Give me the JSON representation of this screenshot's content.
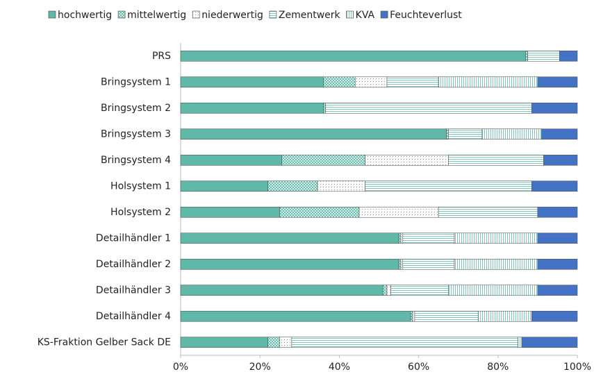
{
  "chart_data": {
    "type": "stacked-bar-horizontal",
    "categories": [
      "PRS",
      "Bringsystem 1",
      "Bringsystem 2",
      "Bringsystem 3",
      "Bringsystem 4",
      "Holsystem 1",
      "Holsystem 2",
      "Detailhändler 1",
      "Detailhändler 2",
      "Detailhändler 3",
      "Detailhändler 4",
      "KS-Fraktion Gelber Sack DE"
    ],
    "series": [
      {
        "name": "hochwertig",
        "color": "#5fb8a8",
        "values": [
          87,
          36,
          36,
          67,
          25.5,
          22,
          25,
          55,
          55,
          51,
          58,
          22
        ]
      },
      {
        "name": "mittelwertig",
        "color": "#5fb8a8",
        "values": [
          0.5,
          8,
          0.5,
          0.5,
          21,
          12.5,
          20,
          0.5,
          0.5,
          1,
          0.5,
          3
        ]
      },
      {
        "name": "niederwertig",
        "color": "#888888",
        "values": [
          0,
          8,
          0,
          0,
          21,
          12,
          20,
          0.5,
          0.5,
          1,
          0.5,
          3
        ]
      },
      {
        "name": "Zementwerk",
        "color": "#5fb8a8",
        "values": [
          8,
          13,
          52,
          8.5,
          24,
          42,
          25,
          13,
          13,
          14.5,
          16,
          57
        ]
      },
      {
        "name": "KVA",
        "color": "#5fb8a8",
        "values": [
          0,
          25,
          0,
          15,
          0,
          0,
          0,
          21,
          21,
          22.5,
          13.5,
          1
        ]
      },
      {
        "name": "Feuchteverlust",
        "color": "#4472c4",
        "values": [
          4.5,
          10,
          11.5,
          9,
          8.5,
          11.5,
          10,
          10,
          10,
          10,
          11.5,
          14
        ]
      }
    ],
    "xlim": [
      0,
      100
    ],
    "xticks": [
      {
        "value": 0,
        "label": "0%"
      },
      {
        "value": 20,
        "label": "20%"
      },
      {
        "value": 40,
        "label": "40%"
      },
      {
        "value": 60,
        "label": "60%"
      },
      {
        "value": 80,
        "label": "80%"
      },
      {
        "value": 100,
        "label": "100%"
      }
    ],
    "legend": "top"
  }
}
